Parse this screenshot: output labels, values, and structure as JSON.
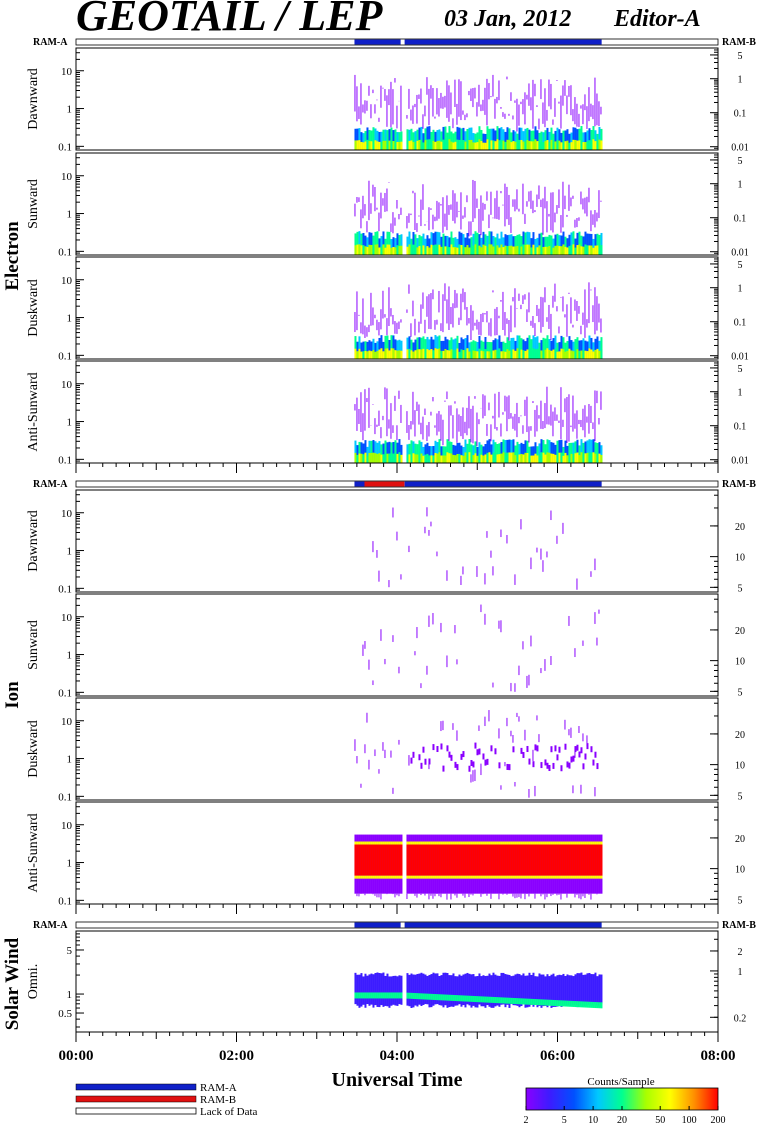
{
  "header": {
    "title": "GEOTAIL / LEP",
    "date": "03 Jan, 2012",
    "editor": "Editor-A"
  },
  "groups": [
    {
      "key": "electron",
      "label": "Electron"
    },
    {
      "key": "ion",
      "label": "Ion"
    },
    {
      "key": "sw",
      "label": "Solar Wind"
    }
  ],
  "ram_labels": {
    "left": "RAM-A",
    "right": "RAM-B"
  },
  "chart_data": {
    "type": "heatmap",
    "xlabel": "Universal Time",
    "x_ticks": [
      "00:00",
      "02:00",
      "04:00",
      "06:00",
      "08:00"
    ],
    "x_range_hours": [
      0,
      8
    ],
    "data_coverage_hours": [
      3.47,
      6.55
    ],
    "panels": [
      {
        "group": "electron",
        "label": "Dawnward",
        "left_ticks": [
          "10",
          "1",
          "0.1"
        ],
        "right_ticks": [
          "5",
          "1",
          "0.1",
          "0.01"
        ],
        "scale": "log",
        "yrange": [
          0.08,
          40
        ]
      },
      {
        "group": "electron",
        "label": "Sunward",
        "left_ticks": [
          "10",
          "1",
          "0.1"
        ],
        "right_ticks": [
          "5",
          "1",
          "0.1",
          "0.01"
        ],
        "scale": "log",
        "yrange": [
          0.08,
          40
        ]
      },
      {
        "group": "electron",
        "label": "Duskward",
        "left_ticks": [
          "10",
          "1",
          "0.1"
        ],
        "right_ticks": [
          "5",
          "1",
          "0.1",
          "0.01"
        ],
        "scale": "log",
        "yrange": [
          0.08,
          40
        ]
      },
      {
        "group": "electron",
        "label": "Anti-Sunward",
        "left_ticks": [
          "10",
          "1",
          "0.1"
        ],
        "right_ticks": [
          "5",
          "1",
          "0.1",
          "0.01"
        ],
        "scale": "log",
        "yrange": [
          0.08,
          40
        ]
      },
      {
        "group": "ion",
        "label": "Dawnward",
        "left_ticks": [
          "10",
          "1",
          "0.1"
        ],
        "right_ticks": [
          "20",
          "10",
          "5"
        ],
        "scale": "log",
        "yrange": [
          0.08,
          40
        ]
      },
      {
        "group": "ion",
        "label": "Sunward",
        "left_ticks": [
          "10",
          "1",
          "0.1"
        ],
        "right_ticks": [
          "20",
          "10",
          "5"
        ],
        "scale": "log",
        "yrange": [
          0.08,
          40
        ]
      },
      {
        "group": "ion",
        "label": "Duskward",
        "left_ticks": [
          "10",
          "1",
          "0.1"
        ],
        "right_ticks": [
          "20",
          "10",
          "5"
        ],
        "scale": "log",
        "yrange": [
          0.08,
          40
        ]
      },
      {
        "group": "ion",
        "label": "Anti-Sunward",
        "left_ticks": [
          "10",
          "1",
          "0.1"
        ],
        "right_ticks": [
          "20",
          "10",
          "5"
        ],
        "scale": "log",
        "yrange": [
          0.08,
          40
        ]
      },
      {
        "group": "sw",
        "label": "Omni.",
        "left_ticks": [
          "5",
          "1",
          "0.5"
        ],
        "right_ticks": [
          "2",
          "1",
          "0.2"
        ],
        "scale": "log",
        "yrange": [
          0.25,
          10
        ]
      }
    ],
    "legend": {
      "entries": [
        {
          "label": "RAM-A",
          "color": "#1020c8"
        },
        {
          "label": "RAM-B",
          "color": "#e01010"
        },
        {
          "label": "Lack of Data",
          "color": "#ffffff"
        }
      ]
    },
    "colorbar": {
      "title": "Counts/Sample",
      "ticks": [
        "2",
        "5",
        "10",
        "20",
        "50",
        "100",
        "200"
      ],
      "colors": [
        "#8a00ff",
        "#3c1cff",
        "#0050ff",
        "#00c8ff",
        "#00ff90",
        "#a8ff00",
        "#ffff00",
        "#ff9000",
        "#ff0000"
      ]
    }
  }
}
